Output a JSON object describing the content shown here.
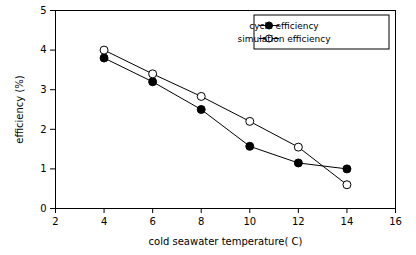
{
  "chart_data": {
    "type": "line",
    "x_label": "cold seawater temperature( C)",
    "y_label": "efficiency (%)",
    "x": [
      4,
      6,
      8,
      10,
      12,
      14
    ],
    "series": [
      {
        "name": "cycle efficiency",
        "color": "#000000",
        "marker": "filled circle",
        "values": [
          3.8,
          3.2,
          2.5,
          1.57,
          1.15,
          1.0
        ]
      },
      {
        "name": "simulation efficiency",
        "color": "#000000",
        "marker": "open circle",
        "values": [
          4.0,
          3.4,
          2.83,
          2.2,
          1.55,
          0.6
        ]
      }
    ],
    "xlim": [
      2,
      16
    ],
    "xticks": [
      2,
      4,
      6,
      8,
      10,
      12,
      14,
      16
    ],
    "ylim": [
      0,
      5
    ],
    "yticks": [
      0,
      1,
      2,
      3,
      4,
      5
    ],
    "grid": false,
    "legend": "top-right"
  }
}
